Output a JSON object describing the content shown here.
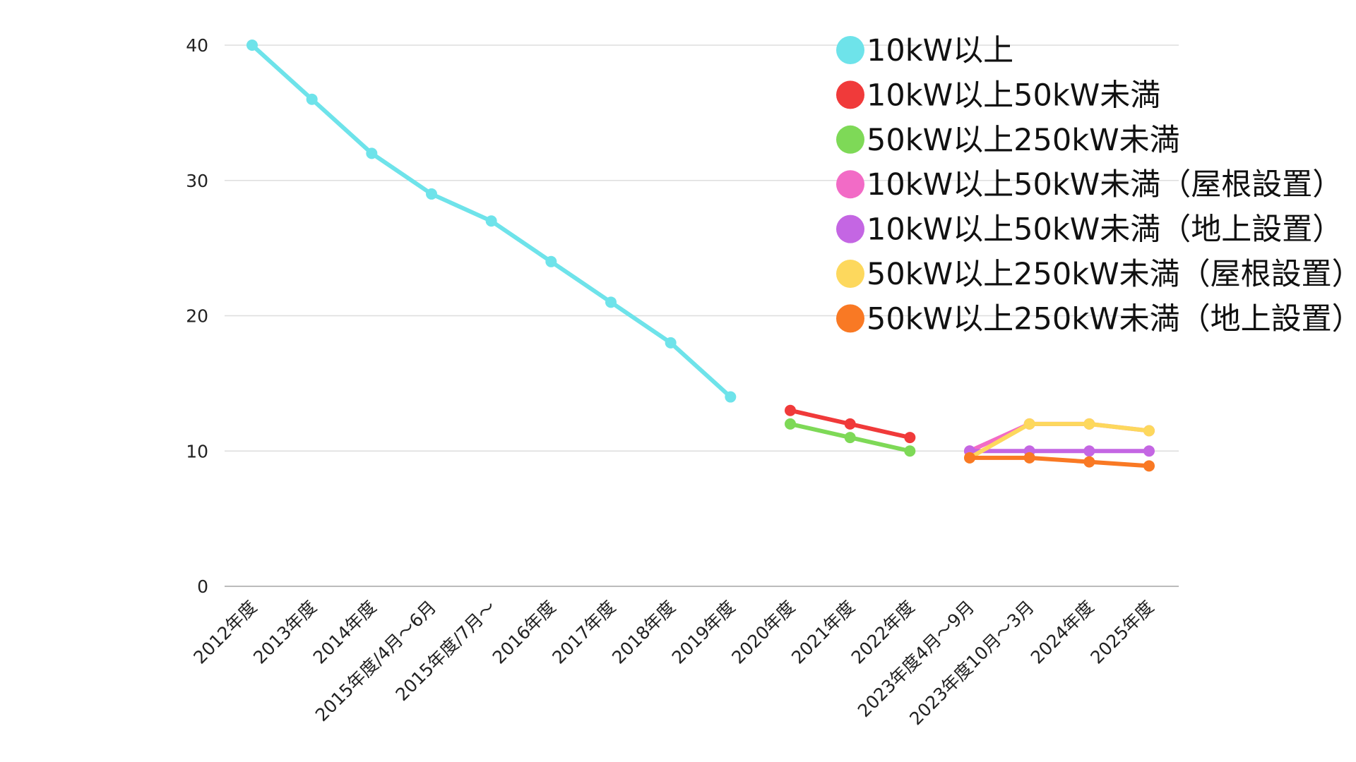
{
  "chart_data": {
    "type": "line",
    "title": "",
    "xlabel": "",
    "ylabel": "",
    "ylim": [
      0,
      40
    ],
    "yticks": [
      0,
      10,
      20,
      30,
      40
    ],
    "grid": true,
    "legend_position": "top-right",
    "categories": [
      "2012年度",
      "2013年度",
      "2014年度",
      "2015年度/4月～6月",
      "2015年度/7月～",
      "2016年度",
      "2017年度",
      "2018年度",
      "2019年度",
      "2020年度",
      "2021年度",
      "2022年度",
      "2023年度4月～9月",
      "2023年度10月～3月",
      "2024年度",
      "2025年度"
    ],
    "series": [
      {
        "name": "10kW以上",
        "color": "#6ee3ea",
        "values": [
          40,
          36,
          32,
          29,
          27,
          24,
          21,
          18,
          14,
          null,
          null,
          null,
          null,
          null,
          null,
          null
        ]
      },
      {
        "name": "10kW以上50kW未満",
        "color": "#f03a3a",
        "values": [
          null,
          null,
          null,
          null,
          null,
          null,
          null,
          null,
          null,
          13,
          12,
          11,
          null,
          null,
          null,
          null
        ]
      },
      {
        "name": "50kW以上250kW未満",
        "color": "#7ed957",
        "values": [
          null,
          null,
          null,
          null,
          null,
          null,
          null,
          null,
          null,
          12,
          11,
          10,
          null,
          null,
          null,
          null
        ]
      },
      {
        "name": "10kW以上50kW未満（屋根設置）",
        "color": "#f26bc6",
        "values": [
          null,
          null,
          null,
          null,
          null,
          null,
          null,
          null,
          null,
          null,
          null,
          null,
          10,
          12,
          12,
          11.5
        ]
      },
      {
        "name": "10kW以上50kW未満（地上設置）",
        "color": "#c466e3",
        "values": [
          null,
          null,
          null,
          null,
          null,
          null,
          null,
          null,
          null,
          null,
          null,
          null,
          10,
          10,
          10,
          10
        ]
      },
      {
        "name": "50kW以上250kW未満（屋根設置）",
        "color": "#fdd85d",
        "values": [
          null,
          null,
          null,
          null,
          null,
          null,
          null,
          null,
          null,
          null,
          null,
          null,
          9.5,
          12,
          12,
          11.5
        ]
      },
      {
        "name": "50kW以上250kW未満（地上設置）",
        "color": "#f97924",
        "values": [
          null,
          null,
          null,
          null,
          null,
          null,
          null,
          null,
          null,
          null,
          null,
          null,
          9.5,
          9.5,
          9.2,
          8.9
        ]
      }
    ]
  }
}
